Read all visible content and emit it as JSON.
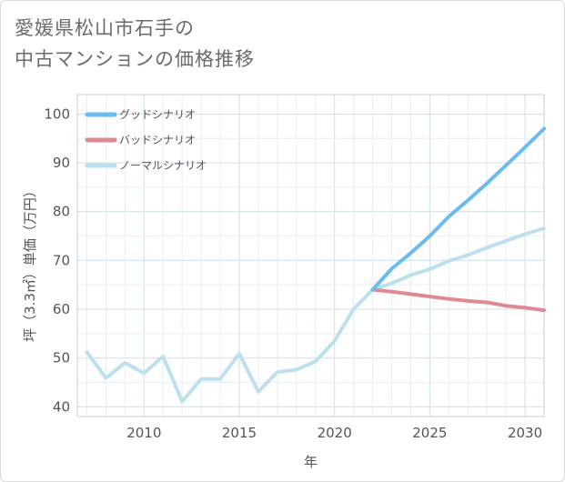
{
  "title_lines": [
    "愛媛県松山市石手の",
    "中古マンションの価格推移"
  ],
  "chart_data": {
    "type": "line",
    "title": "愛媛県松山市石手の中古マンションの価格推移",
    "xlabel": "年",
    "ylabel": "坪（3.3㎡）単価（万円）",
    "xlim": [
      2006.5,
      2031
    ],
    "ylim": [
      38,
      104
    ],
    "x_ticks": [
      2010,
      2015,
      2020,
      2025,
      2030
    ],
    "y_ticks": [
      40,
      50,
      60,
      70,
      80,
      90,
      100
    ],
    "grid": true,
    "legend_position": "top-left",
    "series": [
      {
        "name": "グッドシナリオ",
        "color": "#6cbbee",
        "x": [
          2022,
          2023,
          2024,
          2025,
          2026,
          2027,
          2028,
          2029,
          2030,
          2031
        ],
        "y": [
          64,
          68.3,
          71.5,
          75,
          79,
          82.3,
          85.8,
          89.5,
          93.2,
          97
        ]
      },
      {
        "name": "バッドシナリオ",
        "color": "#de8a93",
        "x": [
          2022,
          2023,
          2024,
          2025,
          2026,
          2027,
          2028,
          2029,
          2030,
          2031
        ],
        "y": [
          64,
          63.6,
          63.1,
          62.6,
          62.1,
          61.7,
          61.4,
          60.7,
          60.3,
          59.8
        ]
      },
      {
        "name": "ノーマルシナリオ",
        "color": "#bde0ee",
        "x": [
          2007,
          2008,
          2009,
          2010,
          2011,
          2012,
          2013,
          2014,
          2015,
          2016,
          2017,
          2018,
          2019,
          2020,
          2021,
          2022,
          2023,
          2024,
          2025,
          2026,
          2027,
          2028,
          2029,
          2030,
          2031
        ],
        "y": [
          51.2,
          45.9,
          49,
          46.9,
          50.3,
          41.1,
          45.7,
          45.7,
          50.9,
          43.1,
          47.1,
          47.6,
          49.3,
          53.5,
          60,
          64,
          65.3,
          67,
          68.2,
          69.9,
          71.1,
          72.6,
          74,
          75.4,
          76.6
        ]
      }
    ]
  }
}
